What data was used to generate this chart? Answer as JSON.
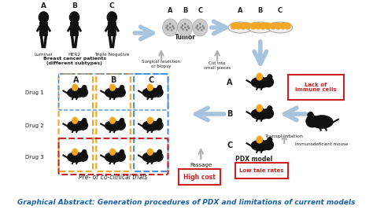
{
  "title": "Graphical Abstract: Generation procedures of PDX and limitations of current models",
  "title_color": "#1a5fa8",
  "title_fontsize": 6.5,
  "bg_color": "#ffffff",
  "patient_labels": [
    "Luminal",
    "HER2",
    "Triple Negative"
  ],
  "patient_subtitle": "Breast cancer patients\n(different subtypes)",
  "tumor_label": "Tumor",
  "tumor_subtitle": "Surgical resection\nor biopsy",
  "cut_subtitle": "Cut into\nsmall pieces",
  "passage_label": "Passage",
  "transplant_label": "Transplantation",
  "pdx_label": "PDX model",
  "preclinical_label": "Pre- or co-clinical trials",
  "drug_labels": [
    "Drug 1",
    "Drug 2",
    "Drug 3"
  ],
  "subtypes_abc": [
    "A",
    "B",
    "C"
  ],
  "limitation1": "Lack of\nimmune cells",
  "limitation2": "Immunodeficient mouse",
  "limitation3": "High cost",
  "limitation4": "Low tale rates",
  "arrow_color": "#a8c4dd",
  "yellow_box": "#f5a623",
  "blue_box": "#4a90d9",
  "red_box": "#cc2222",
  "red_text": "#cc2222",
  "dark_text": "#222222",
  "mouse_color": "#111111",
  "tumor_dot_color": "#f5a623",
  "gray_arrow": "#b0b0b0"
}
